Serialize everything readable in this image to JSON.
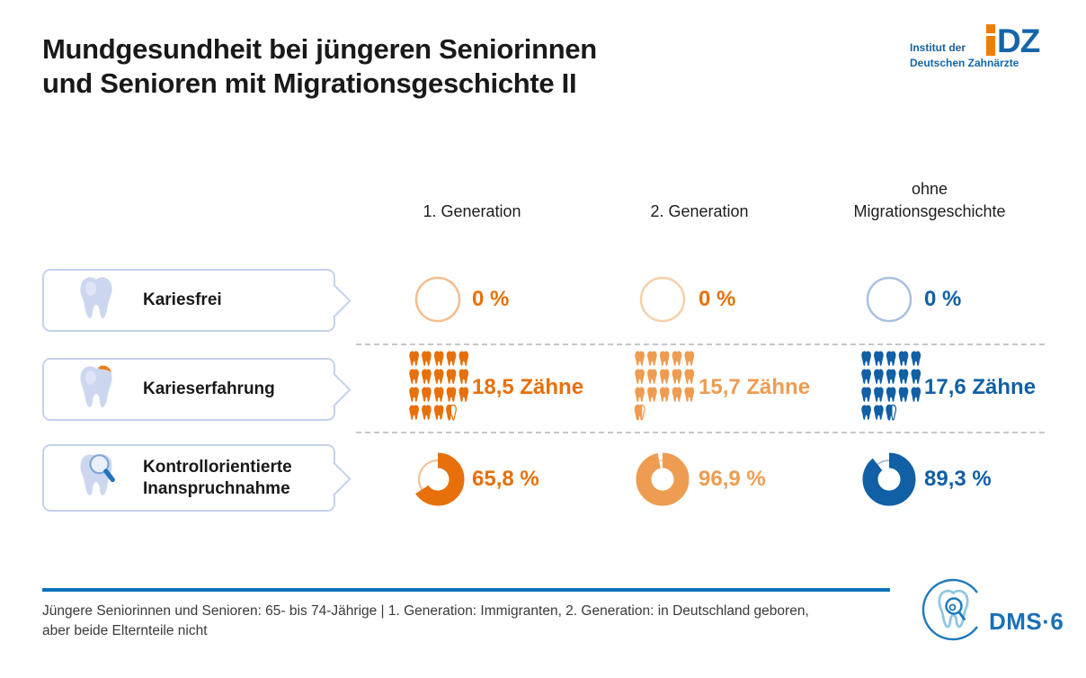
{
  "title": {
    "line1": "Mundgesundheit bei jüngeren Seniorinnen",
    "line2": "und Senioren mit Migrationsgeschichte II"
  },
  "logo_idz": {
    "line1": "Institut der",
    "line2": "Deutschen Zahnärzte",
    "mark_letters": "DZ",
    "mark_full": "IDZ"
  },
  "header": {
    "col1": "1. Generation",
    "col2": "2. Generation",
    "col3_line1": "ohne",
    "col3_line2": "Migrationsgeschichte"
  },
  "rows": [
    {
      "label": "Kariesfrei",
      "icon": "tooth-icon"
    },
    {
      "label": "Karieserfahrung",
      "icon": "tooth-caries-icon"
    },
    {
      "label": "Kontrollorientierte Inanspruchnahme",
      "icon": "tooth-magnifier-icon"
    }
  ],
  "chart_data": {
    "type": "table",
    "title": "Mundgesundheit bei jüngeren Seniorinnen und Senioren mit Migrationsgeschichte II",
    "columns": [
      "1. Generation",
      "2. Generation",
      "ohne Migrationsgeschichte"
    ],
    "column_colors": [
      "#e7700a",
      "#ee9c51",
      "#115fa5"
    ],
    "column_pale_colors": [
      "#f4bd8e",
      "#f6cfa9",
      "#a9c0e2"
    ],
    "rows": [
      {
        "label": "Kariesfrei",
        "viz": "donut",
        "unit": "%",
        "values": [
          0,
          0,
          0
        ],
        "display": [
          "0 %",
          "0 %",
          "0 %"
        ],
        "value_colors": [
          "#e7700a",
          "#e7700a",
          "#115fa5"
        ]
      },
      {
        "label": "Karieserfahrung",
        "viz": "tooth-pictogram",
        "unit": "Zähne",
        "values": [
          18.5,
          15.7,
          17.6
        ],
        "display": [
          "18,5 Zähne",
          "15,7 Zähne",
          "17,6 Zähne"
        ],
        "value_colors": [
          "#e7700a",
          "#ee9c51",
          "#115fa5"
        ]
      },
      {
        "label": "Kontrollorientierte Inanspruchnahme",
        "viz": "donut",
        "unit": "%",
        "values": [
          65.8,
          96.9,
          89.3
        ],
        "display": [
          "65,8 %",
          "96,9 %",
          "89,3 %"
        ],
        "value_colors": [
          "#e7700a",
          "#ee9c51",
          "#115fa5"
        ]
      }
    ]
  },
  "footer": {
    "note_line1": "Jüngere Seniorinnen und Senioren: 65- bis 74-Jährige | 1. Generation: Immigranten, 2. Generation: in Deutschland geboren,",
    "note_line2": "aber beide Elternteile nicht",
    "logo_dms": "DMS·6"
  },
  "colors": {
    "accent_orange": "#e7700a",
    "accent_orange_light": "#ee9c51",
    "accent_blue": "#115fa5",
    "rule_blue": "#0d71ba",
    "label_border": "#c4d2ee",
    "tooth_icon_fill": "#ccd7ef"
  }
}
